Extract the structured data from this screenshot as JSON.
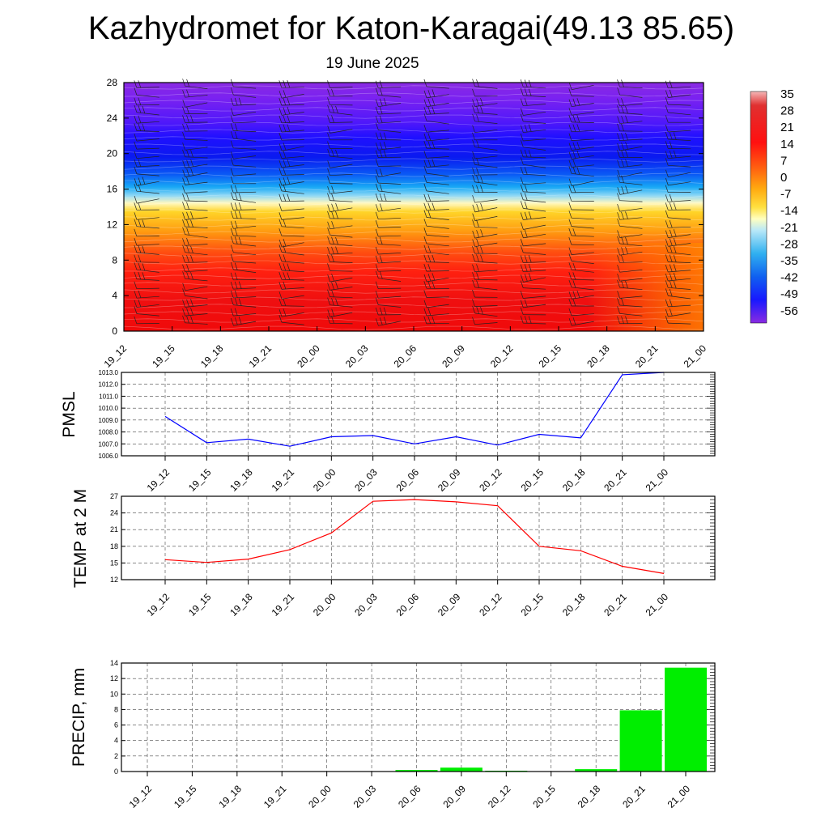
{
  "header": {
    "title": "Kazhydromet for Katon-Karagai(49.13 85.65)",
    "date": "19 June 2025"
  },
  "chart_data": [
    {
      "type": "heatmap",
      "name": "vertical-temperature-wind",
      "x_tick_labels": [
        "19_12",
        "19_15",
        "19_18",
        "19_21",
        "20_00",
        "20_03",
        "20_06",
        "20_09",
        "20_12",
        "20_15",
        "20_18",
        "20_21",
        "21_00"
      ],
      "ylim": [
        0,
        28
      ],
      "y_tick_labels": [
        "0",
        "4",
        "8",
        "12",
        "16",
        "20",
        "24",
        "28"
      ],
      "colorbar": {
        "tick_labels": [
          "35",
          "28",
          "21",
          "14",
          "7",
          "0",
          "-7",
          "-14",
          "-21",
          "-28",
          "-35",
          "-42",
          "-49",
          "-56"
        ],
        "range": [
          -63,
          42
        ]
      }
    },
    {
      "type": "line",
      "name": "pmsl",
      "ylabel": "PMSL",
      "categories": [
        "19_12",
        "19_15",
        "19_18",
        "19_21",
        "20_00",
        "20_03",
        "20_06",
        "20_09",
        "20_12",
        "20_15",
        "20_18",
        "20_21",
        "21_00"
      ],
      "values": [
        1009.3,
        1007.1,
        1007.4,
        1006.8,
        1007.6,
        1007.7,
        1007.0,
        1007.6,
        1006.9,
        1007.8,
        1007.5,
        1012.8,
        1013.0
      ],
      "ylim": [
        1006.0,
        1013.0
      ],
      "y_tick_labels": [
        "1006.0",
        "1007.0",
        "1008.0",
        "1009.0",
        "1010.0",
        "1011.0",
        "1012.0",
        "1013.0"
      ],
      "color": "#0000ff"
    },
    {
      "type": "line",
      "name": "temp2m",
      "ylabel": "TEMP at 2 M",
      "categories": [
        "19_12",
        "19_15",
        "19_18",
        "19_21",
        "20_00",
        "20_03",
        "20_06",
        "20_09",
        "20_12",
        "20_15",
        "20_18",
        "20_21",
        "21_00"
      ],
      "values": [
        15.6,
        15.1,
        15.7,
        17.4,
        20.4,
        26.1,
        26.4,
        26.0,
        25.3,
        18.0,
        17.2,
        14.4,
        13.1
      ],
      "ylim": [
        12,
        27
      ],
      "y_tick_labels": [
        "12",
        "15",
        "18",
        "21",
        "24",
        "27"
      ],
      "color": "#ff0000"
    },
    {
      "type": "bar",
      "name": "precip",
      "ylabel": "PRECIP, mm",
      "categories": [
        "19_12",
        "19_15",
        "19_18",
        "19_21",
        "20_00",
        "20_03",
        "20_06",
        "20_09",
        "20_12",
        "20_15",
        "20_18",
        "20_21",
        "21_00"
      ],
      "values": [
        0,
        0,
        0,
        0,
        0,
        0,
        0.2,
        0.5,
        0.1,
        0,
        0.3,
        7.9,
        13.4
      ],
      "ylim": [
        0,
        14
      ],
      "y_tick_labels": [
        "0",
        "2",
        "4",
        "6",
        "8",
        "10",
        "12",
        "14"
      ],
      "color": "#00ee00"
    }
  ]
}
